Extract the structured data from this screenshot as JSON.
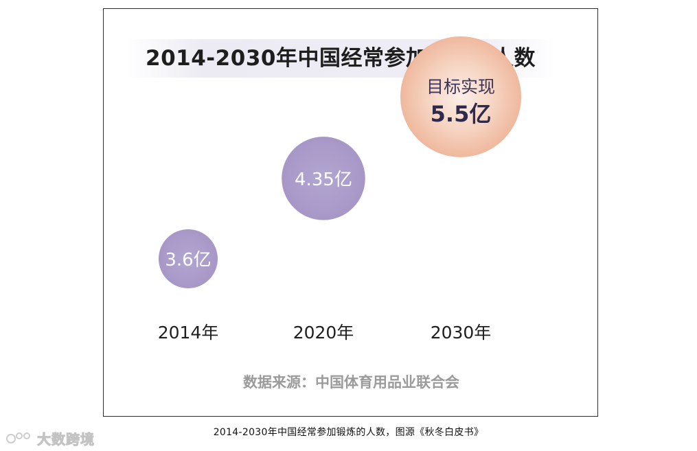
{
  "chart_data": {
    "type": "scatter",
    "title": "2014-2030年中国经常参加锻炼的人数",
    "categories": [
      "2014年",
      "2020年",
      "2030年"
    ],
    "values": [
      3.6,
      4.35,
      5.5
    ],
    "unit": "亿",
    "data_labels": [
      "3.6亿",
      "4.35亿",
      "5.5亿"
    ],
    "annotations": [
      "目标实现"
    ],
    "colors": [
      "#ab9dcb",
      "#ab9dcb",
      "#f1bfa6"
    ],
    "grid": false,
    "xlabel": "",
    "ylabel": ""
  },
  "source_note": "数据来源：中国体育用品业联合会",
  "caption": "2014-2030年中国经常参加锻炼的人数，图源《秋冬白皮书》",
  "watermark": "大数跨境"
}
